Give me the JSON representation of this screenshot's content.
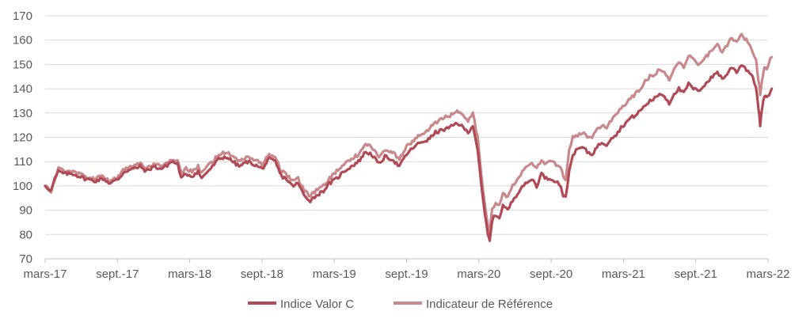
{
  "chart_data": {
    "type": "line",
    "title": "",
    "xlabel": "",
    "ylabel": "",
    "ylim": [
      70,
      170
    ],
    "yticks": [
      70,
      80,
      90,
      100,
      110,
      120,
      130,
      140,
      150,
      160,
      170
    ],
    "xticks": [
      "mars-17",
      "sept.-17",
      "mars-18",
      "sept.-18",
      "mars-19",
      "sept.-19",
      "mars-20",
      "sept.-20",
      "mars-21",
      "sept.-21",
      "mars-22"
    ],
    "grid": "horizontal",
    "legend_position": "bottom",
    "x_unit": "months since mars-17",
    "series": [
      {
        "name": "Indice Valor C",
        "color": "#b04a55",
        "points": [
          [
            0,
            100
          ],
          [
            0.5,
            98
          ],
          [
            0.8,
            103
          ],
          [
            1.1,
            106
          ],
          [
            1.6,
            105
          ],
          [
            2.3,
            105
          ],
          [
            2.8,
            104
          ],
          [
            3.3,
            103
          ],
          [
            4.1,
            102
          ],
          [
            4.8,
            103
          ],
          [
            5.4,
            101
          ],
          [
            6.1,
            103
          ],
          [
            6.6,
            106
          ],
          [
            7.3,
            107
          ],
          [
            7.9,
            108
          ],
          [
            8.4,
            106
          ],
          [
            9.0,
            108
          ],
          [
            9.6,
            107
          ],
          [
            10.0,
            108
          ],
          [
            10.5,
            110
          ],
          [
            11.0,
            109
          ],
          [
            11.3,
            103
          ],
          [
            11.7,
            105
          ],
          [
            12.2,
            104
          ],
          [
            12.7,
            106
          ],
          [
            13.0,
            103
          ],
          [
            13.3,
            105
          ],
          [
            13.9,
            108
          ],
          [
            14.4,
            111
          ],
          [
            15.0,
            112
          ],
          [
            15.6,
            110
          ],
          [
            16.1,
            108
          ],
          [
            16.8,
            110
          ],
          [
            17.3,
            109
          ],
          [
            18.0,
            107
          ],
          [
            18.6,
            111
          ],
          [
            19.1,
            110
          ],
          [
            19.6,
            104
          ],
          [
            20.0,
            103
          ],
          [
            20.5,
            100
          ],
          [
            21.0,
            101
          ],
          [
            21.5,
            96
          ],
          [
            22.0,
            94
          ],
          [
            22.5,
            96
          ],
          [
            23.1,
            98
          ],
          [
            23.6,
            101
          ],
          [
            24.2,
            103
          ],
          [
            24.8,
            106
          ],
          [
            25.4,
            108
          ],
          [
            26.0,
            110
          ],
          [
            26.6,
            114
          ],
          [
            27.1,
            113
          ],
          [
            27.7,
            109
          ],
          [
            28.2,
            112
          ],
          [
            28.8,
            111
          ],
          [
            29.4,
            108
          ],
          [
            30.0,
            113
          ],
          [
            30.6,
            116
          ],
          [
            31.2,
            118
          ],
          [
            31.8,
            119
          ],
          [
            32.4,
            122
          ],
          [
            33.0,
            123
          ],
          [
            33.6,
            124
          ],
          [
            34.2,
            126
          ],
          [
            34.7,
            124
          ],
          [
            35.1,
            122
          ],
          [
            35.5,
            125
          ],
          [
            35.9,
            115
          ],
          [
            36.2,
            100
          ],
          [
            36.5,
            88
          ],
          [
            36.75,
            80
          ],
          [
            36.9,
            77
          ],
          [
            37.1,
            86
          ],
          [
            37.4,
            88
          ],
          [
            37.7,
            87
          ],
          [
            38.0,
            92
          ],
          [
            38.4,
            90
          ],
          [
            38.8,
            94
          ],
          [
            39.2,
            97
          ],
          [
            39.6,
            100
          ],
          [
            40.0,
            101
          ],
          [
            40.4,
            103
          ],
          [
            40.8,
            100
          ],
          [
            41.2,
            105
          ],
          [
            41.6,
            103
          ],
          [
            42.0,
            103
          ],
          [
            42.4,
            102
          ],
          [
            42.8,
            100
          ],
          [
            43.0,
            96
          ],
          [
            43.2,
            95
          ],
          [
            43.5,
            106
          ],
          [
            43.8,
            113
          ],
          [
            44.2,
            115
          ],
          [
            44.6,
            116
          ],
          [
            45.0,
            114
          ],
          [
            45.4,
            113
          ],
          [
            45.8,
            116
          ],
          [
            46.2,
            118
          ],
          [
            46.6,
            117
          ],
          [
            47.0,
            120
          ],
          [
            47.4,
            121
          ],
          [
            47.8,
            124
          ],
          [
            48.2,
            126
          ],
          [
            48.6,
            128
          ],
          [
            49.0,
            129
          ],
          [
            49.4,
            131
          ],
          [
            49.8,
            133
          ],
          [
            50.2,
            135
          ],
          [
            50.6,
            136
          ],
          [
            51.0,
            138
          ],
          [
            51.4,
            137
          ],
          [
            51.8,
            134
          ],
          [
            52.2,
            138
          ],
          [
            52.6,
            140
          ],
          [
            53.0,
            138
          ],
          [
            53.4,
            142
          ],
          [
            53.8,
            140
          ],
          [
            54.2,
            139
          ],
          [
            54.6,
            141
          ],
          [
            55.0,
            143
          ],
          [
            55.4,
            145
          ],
          [
            55.8,
            147
          ],
          [
            56.2,
            144
          ],
          [
            56.6,
            146
          ],
          [
            57.0,
            149
          ],
          [
            57.4,
            147
          ],
          [
            57.8,
            150
          ],
          [
            58.2,
            148
          ],
          [
            58.6,
            146
          ],
          [
            59.0,
            141
          ],
          [
            59.2,
            132
          ],
          [
            59.35,
            125
          ],
          [
            59.5,
            132
          ],
          [
            59.7,
            137
          ],
          [
            59.9,
            136
          ],
          [
            60.1,
            138
          ],
          [
            60.3,
            140
          ]
        ]
      },
      {
        "name": "Indicateur de Référence",
        "color": "#c9888a",
        "points": [
          [
            0,
            100
          ],
          [
            0.5,
            98
          ],
          [
            0.8,
            103
          ],
          [
            1.1,
            107
          ],
          [
            1.6,
            106
          ],
          [
            2.3,
            106
          ],
          [
            2.8,
            105
          ],
          [
            3.3,
            104
          ],
          [
            4.1,
            103
          ],
          [
            4.8,
            104
          ],
          [
            5.4,
            102
          ],
          [
            6.1,
            104
          ],
          [
            6.6,
            107
          ],
          [
            7.3,
            108
          ],
          [
            7.9,
            109
          ],
          [
            8.4,
            107
          ],
          [
            9.0,
            109
          ],
          [
            9.6,
            108
          ],
          [
            10.0,
            109
          ],
          [
            10.5,
            111
          ],
          [
            11.0,
            110
          ],
          [
            11.3,
            105
          ],
          [
            11.7,
            107
          ],
          [
            12.2,
            106
          ],
          [
            12.7,
            108
          ],
          [
            13.0,
            105
          ],
          [
            13.3,
            107
          ],
          [
            13.9,
            110
          ],
          [
            14.4,
            113
          ],
          [
            15.0,
            114
          ],
          [
            15.6,
            112
          ],
          [
            16.1,
            110
          ],
          [
            16.8,
            112
          ],
          [
            17.3,
            111
          ],
          [
            18.0,
            109
          ],
          [
            18.6,
            113
          ],
          [
            19.1,
            112
          ],
          [
            19.6,
            106
          ],
          [
            20.0,
            105
          ],
          [
            20.5,
            102
          ],
          [
            21.0,
            103
          ],
          [
            21.5,
            98
          ],
          [
            22.0,
            96
          ],
          [
            22.5,
            98
          ],
          [
            23.1,
            100
          ],
          [
            23.6,
            103
          ],
          [
            24.2,
            106
          ],
          [
            24.8,
            109
          ],
          [
            25.4,
            111
          ],
          [
            26.0,
            113
          ],
          [
            26.6,
            117
          ],
          [
            27.1,
            116
          ],
          [
            27.7,
            112
          ],
          [
            28.2,
            115
          ],
          [
            28.8,
            114
          ],
          [
            29.4,
            111
          ],
          [
            30.0,
            116
          ],
          [
            30.6,
            119
          ],
          [
            31.2,
            121
          ],
          [
            31.8,
            123
          ],
          [
            32.4,
            126
          ],
          [
            33.0,
            128
          ],
          [
            33.6,
            129
          ],
          [
            34.2,
            131
          ],
          [
            34.7,
            129
          ],
          [
            35.1,
            127
          ],
          [
            35.5,
            130
          ],
          [
            35.9,
            120
          ],
          [
            36.2,
            105
          ],
          [
            36.5,
            92
          ],
          [
            36.75,
            84
          ],
          [
            36.9,
            81
          ],
          [
            37.1,
            90
          ],
          [
            37.4,
            93
          ],
          [
            37.7,
            92
          ],
          [
            38.0,
            97
          ],
          [
            38.4,
            95
          ],
          [
            38.8,
            100
          ],
          [
            39.2,
            103
          ],
          [
            39.6,
            106
          ],
          [
            40.0,
            108
          ],
          [
            40.4,
            110
          ],
          [
            40.8,
            107
          ],
          [
            41.2,
            111
          ],
          [
            41.6,
            109
          ],
          [
            42.0,
            110
          ],
          [
            42.4,
            109
          ],
          [
            42.8,
            107
          ],
          [
            43.0,
            104
          ],
          [
            43.2,
            103
          ],
          [
            43.5,
            115
          ],
          [
            43.8,
            120
          ],
          [
            44.2,
            121
          ],
          [
            44.6,
            122
          ],
          [
            45.0,
            120
          ],
          [
            45.4,
            120
          ],
          [
            45.8,
            123
          ],
          [
            46.2,
            125
          ],
          [
            46.6,
            124
          ],
          [
            47.0,
            127
          ],
          [
            47.4,
            129
          ],
          [
            47.8,
            132
          ],
          [
            48.2,
            134
          ],
          [
            48.6,
            136
          ],
          [
            49.0,
            138
          ],
          [
            49.4,
            140
          ],
          [
            49.8,
            143
          ],
          [
            50.2,
            145
          ],
          [
            50.6,
            146
          ],
          [
            51.0,
            148
          ],
          [
            51.4,
            147
          ],
          [
            51.8,
            144
          ],
          [
            52.2,
            148
          ],
          [
            52.6,
            151
          ],
          [
            53.0,
            149
          ],
          [
            53.4,
            154
          ],
          [
            53.8,
            152
          ],
          [
            54.2,
            150
          ],
          [
            54.6,
            152
          ],
          [
            55.0,
            154
          ],
          [
            55.4,
            156
          ],
          [
            55.8,
            158
          ],
          [
            56.2,
            155
          ],
          [
            56.6,
            158
          ],
          [
            57.0,
            161
          ],
          [
            57.4,
            159
          ],
          [
            57.8,
            162
          ],
          [
            58.2,
            160
          ],
          [
            58.6,
            157
          ],
          [
            59.0,
            152
          ],
          [
            59.2,
            144
          ],
          [
            59.35,
            138
          ],
          [
            59.5,
            143
          ],
          [
            59.7,
            149
          ],
          [
            59.9,
            148
          ],
          [
            60.1,
            151
          ],
          [
            60.3,
            153
          ]
        ]
      }
    ]
  }
}
